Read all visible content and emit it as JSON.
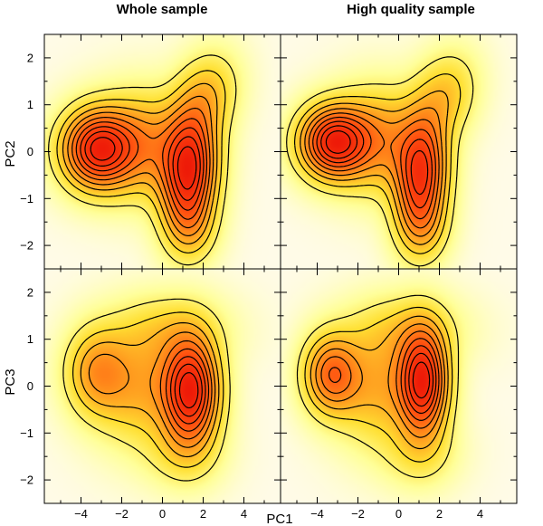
{
  "chart_data": {
    "type": "heatmap",
    "description_kind": "2D kernel density maps with contour lines",
    "column_titles": [
      "Whole sample",
      "High quality sample"
    ],
    "xlabel": "PC1",
    "ylabels": [
      "PC2",
      "PC3"
    ],
    "xlim": [
      -5.8,
      5.8
    ],
    "ylim": [
      -2.5,
      2.5
    ],
    "x_ticks": [
      -4,
      -2,
      0,
      2,
      4
    ],
    "y_ticks": [
      -2,
      -1,
      0,
      1,
      2
    ],
    "x_tick_labels": [
      "−4",
      "−2",
      "0",
      "2",
      "4"
    ],
    "y_tick_labels": [
      "−2",
      "−1",
      "0",
      "1",
      "2"
    ],
    "colormap": [
      "#fffbe8",
      "#ffff99",
      "#ffe033",
      "#ff9a1e",
      "#ff5010",
      "#ee1a08"
    ],
    "contour_levels": [
      0.1,
      0.2,
      0.3,
      0.4,
      0.5,
      0.6,
      0.7,
      0.8,
      0.9
    ],
    "panels": [
      {
        "name": "whole-pc1-pc2",
        "row": 0,
        "col": 0,
        "components": [
          {
            "x": -3.2,
            "y": 0.05,
            "sx": 1.15,
            "sy": 0.55,
            "rho": 0.0,
            "w": 0.95
          },
          {
            "x": 1.3,
            "y": -0.4,
            "sx": 0.9,
            "sy": 0.85,
            "rho": 0.1,
            "w": 1.0
          },
          {
            "x": -1.0,
            "y": 0.15,
            "sx": 1.4,
            "sy": 0.7,
            "rho": 0.0,
            "w": 0.45
          },
          {
            "x": 2.2,
            "y": 1.2,
            "sx": 1.0,
            "sy": 0.6,
            "rho": 0.2,
            "w": 0.28
          },
          {
            "x": 1.4,
            "y": -1.6,
            "sx": 0.8,
            "sy": 0.5,
            "rho": 0.0,
            "w": 0.2
          }
        ]
      },
      {
        "name": "hq-pc1-pc2",
        "row": 0,
        "col": 1,
        "components": [
          {
            "x": -3.2,
            "y": 0.2,
            "sx": 1.1,
            "sy": 0.5,
            "rho": 0.0,
            "w": 1.0
          },
          {
            "x": 1.1,
            "y": -0.5,
            "sx": 0.85,
            "sy": 0.85,
            "rho": 0.1,
            "w": 0.9
          },
          {
            "x": -1.0,
            "y": 0.25,
            "sx": 1.4,
            "sy": 0.7,
            "rho": 0.0,
            "w": 0.45
          },
          {
            "x": 2.3,
            "y": 1.2,
            "sx": 1.0,
            "sy": 0.6,
            "rho": 0.2,
            "w": 0.28
          },
          {
            "x": 1.2,
            "y": -1.6,
            "sx": 0.8,
            "sy": 0.5,
            "rho": 0.0,
            "w": 0.2
          }
        ]
      },
      {
        "name": "whole-pc1-pc3",
        "row": 1,
        "col": 0,
        "components": [
          {
            "x": 1.4,
            "y": -0.1,
            "sx": 0.9,
            "sy": 0.75,
            "rho": 0.0,
            "w": 1.0
          },
          {
            "x": -3.2,
            "y": 0.3,
            "sx": 1.0,
            "sy": 0.6,
            "rho": 0.0,
            "w": 0.4
          },
          {
            "x": -1.0,
            "y": 0.0,
            "sx": 1.5,
            "sy": 0.8,
            "rho": 0.0,
            "w": 0.35
          },
          {
            "x": 0.3,
            "y": 1.2,
            "sx": 1.8,
            "sy": 0.5,
            "rho": 0.0,
            "w": 0.18
          },
          {
            "x": 1.0,
            "y": -1.4,
            "sx": 1.2,
            "sy": 0.5,
            "rho": 0.0,
            "w": 0.15
          }
        ]
      },
      {
        "name": "hq-pc1-pc3",
        "row": 1,
        "col": 1,
        "components": [
          {
            "x": 1.2,
            "y": 0.1,
            "sx": 0.8,
            "sy": 0.75,
            "rho": 0.0,
            "w": 1.0
          },
          {
            "x": -3.3,
            "y": 0.25,
            "sx": 0.9,
            "sy": 0.55,
            "rho": 0.0,
            "w": 0.6
          },
          {
            "x": -1.0,
            "y": 0.0,
            "sx": 1.4,
            "sy": 0.8,
            "rho": 0.0,
            "w": 0.35
          },
          {
            "x": 0.3,
            "y": 1.2,
            "sx": 1.8,
            "sy": 0.5,
            "rho": 0.0,
            "w": 0.18
          },
          {
            "x": 1.0,
            "y": -1.4,
            "sx": 1.2,
            "sy": 0.5,
            "rho": 0.0,
            "w": 0.15
          }
        ]
      }
    ]
  }
}
